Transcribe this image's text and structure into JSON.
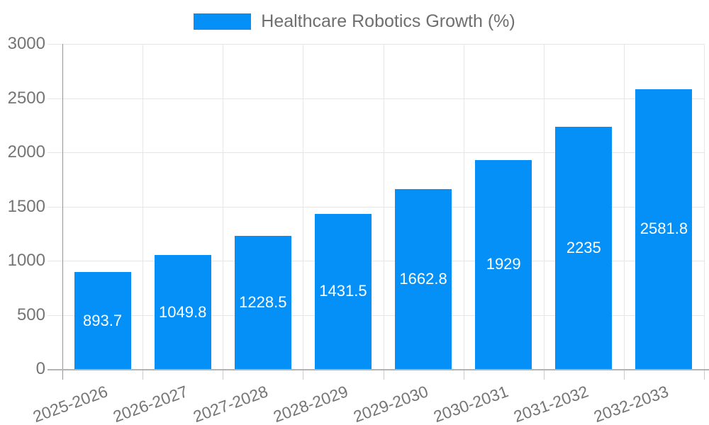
{
  "legend": {
    "label": "Healthcare Robotics Growth (%)"
  },
  "chart_data": {
    "type": "bar",
    "title": "Healthcare Robotics Growth (%)",
    "categories": [
      "2025-2026",
      "2026-2027",
      "2027-2028",
      "2028-2029",
      "2029-2030",
      "2030-2031",
      "2031-2032",
      "2032-2033"
    ],
    "values": [
      893.7,
      1049.8,
      1228.5,
      1431.5,
      1662.8,
      1929,
      2235,
      2581.8
    ],
    "value_labels": [
      "893.7",
      "1049.8",
      "1228.5",
      "1431.5",
      "1662.8",
      "1929",
      "2235",
      "2581.8"
    ],
    "xlabel": "",
    "ylabel": "",
    "ylim": [
      0,
      3000
    ],
    "ytick_values": [
      0,
      500,
      1000,
      1500,
      2000,
      2500,
      3000
    ],
    "ytick_labels": [
      "0",
      "500",
      "1000",
      "1500",
      "2000",
      "2500",
      "3000"
    ],
    "grid": true,
    "legend_position": "top-center",
    "bar_color": "#0590F8",
    "value_label_color": "#ffffff",
    "axis_text_color": "#757575"
  }
}
